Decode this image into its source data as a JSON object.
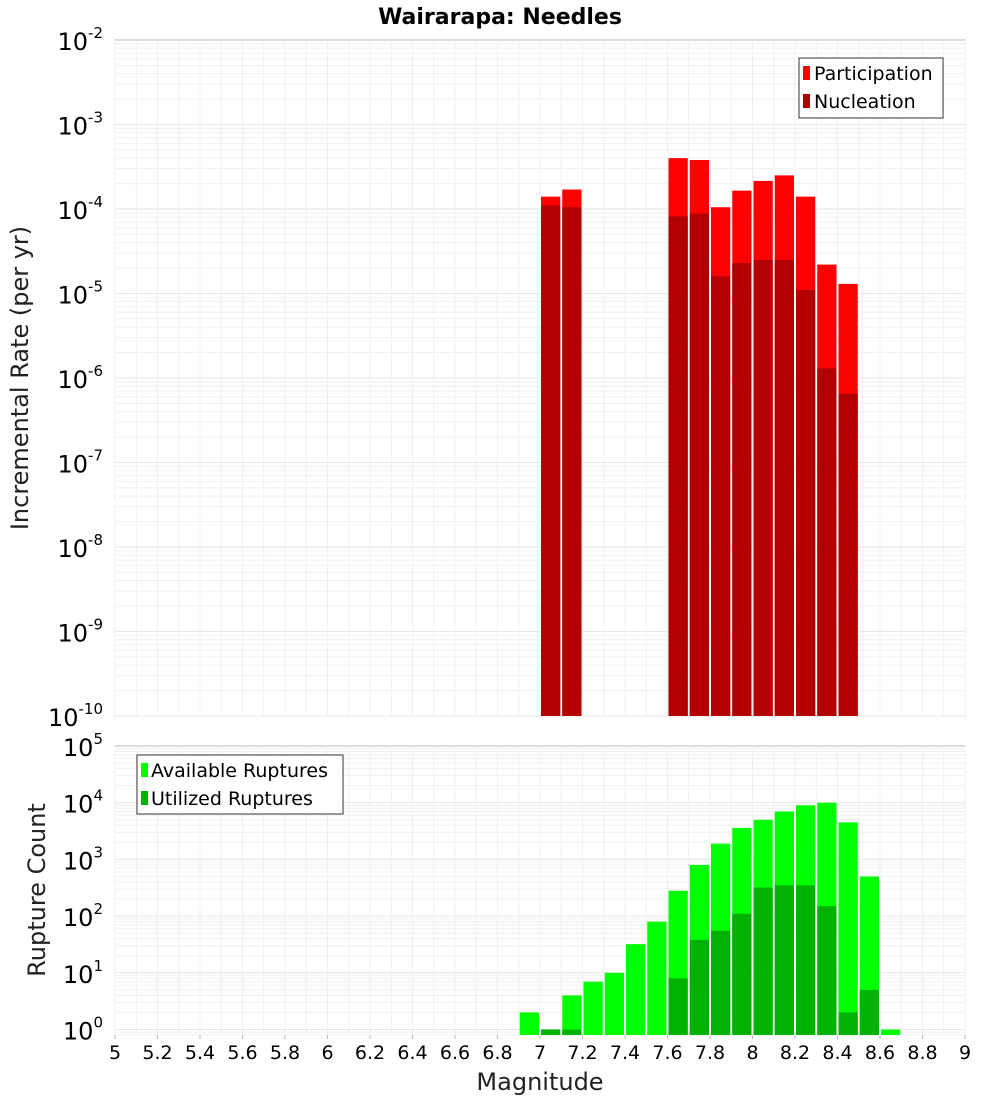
{
  "title": "Wairarapa: Needles",
  "colors": {
    "participation": "#ff0000",
    "nucleation": "#b20000",
    "available": "#00ff00",
    "utilized": "#00b200",
    "frame": "#b8b8b8"
  },
  "chart_data": [
    {
      "type": "bar",
      "ylabel": "Incremental Rate (per yr)",
      "yscale": "log",
      "ylim": [
        1e-10,
        0.01
      ],
      "xlim": [
        5,
        9
      ],
      "bar_width": 0.1,
      "yticks": [
        {
          "base": "10",
          "exp": "-10"
        },
        {
          "base": "10",
          "exp": "-9"
        },
        {
          "base": "10",
          "exp": "-8"
        },
        {
          "base": "10",
          "exp": "-7"
        },
        {
          "base": "10",
          "exp": "-6"
        },
        {
          "base": "10",
          "exp": "-5"
        },
        {
          "base": "10",
          "exp": "-4"
        },
        {
          "base": "10",
          "exp": "-3"
        },
        {
          "base": "10",
          "exp": "-2"
        }
      ],
      "legend": {
        "position": "top-right",
        "items": [
          "Participation",
          "Nucleation"
        ]
      },
      "series": [
        {
          "name": "Participation",
          "x": [
            7.05,
            7.15,
            7.65,
            7.75,
            7.85,
            7.95,
            8.05,
            8.15,
            8.25,
            8.35,
            8.45
          ],
          "values": [
            0.00014,
            0.00017,
            0.0004,
            0.00038,
            0.000105,
            0.000165,
            0.000215,
            0.00025,
            0.00014,
            2.2e-05,
            1.3e-05
          ]
        },
        {
          "name": "Nucleation",
          "x": [
            7.05,
            7.15,
            7.65,
            7.75,
            7.85,
            7.95,
            8.05,
            8.15,
            8.25,
            8.35,
            8.45
          ],
          "values": [
            0.00011,
            0.000105,
            8.2e-05,
            8.8e-05,
            1.6e-05,
            2.3e-05,
            2.5e-05,
            2.5e-05,
            1.1e-05,
            1.3e-06,
            6.5e-07
          ]
        }
      ]
    },
    {
      "type": "bar",
      "ylabel": "Rupture Count",
      "xlabel": "Magnitude",
      "yscale": "log",
      "ylim": [
        0.8,
        100000
      ],
      "xlim": [
        5,
        9
      ],
      "bar_width": 0.1,
      "xticks": [
        "5",
        "5.2",
        "5.4",
        "5.6",
        "5.8",
        "6",
        "6.2",
        "6.4",
        "6.6",
        "6.8",
        "7",
        "7.2",
        "7.4",
        "7.6",
        "7.8",
        "8",
        "8.2",
        "8.4",
        "8.6",
        "8.8",
        "9"
      ],
      "yticks": [
        {
          "base": "10",
          "exp": "0"
        },
        {
          "base": "10",
          "exp": "1"
        },
        {
          "base": "10",
          "exp": "2"
        },
        {
          "base": "10",
          "exp": "3"
        },
        {
          "base": "10",
          "exp": "4"
        },
        {
          "base": "10",
          "exp": "5"
        }
      ],
      "legend": {
        "position": "top-left",
        "items": [
          "Available Ruptures",
          "Utilized Ruptures"
        ]
      },
      "series": [
        {
          "name": "Available Ruptures",
          "x": [
            6.95,
            7.05,
            7.15,
            7.25,
            7.35,
            7.45,
            7.55,
            7.65,
            7.75,
            7.85,
            7.95,
            8.05,
            8.15,
            8.25,
            8.35,
            8.45,
            8.55,
            8.65
          ],
          "values": [
            2,
            1,
            4,
            7,
            10,
            32,
            80,
            280,
            800,
            1900,
            3600,
            5000,
            7000,
            9000,
            10000,
            4500,
            500,
            1
          ]
        },
        {
          "name": "Utilized Ruptures",
          "x": [
            7.05,
            7.15,
            7.65,
            7.75,
            7.85,
            7.95,
            8.05,
            8.15,
            8.25,
            8.35,
            8.45,
            8.55
          ],
          "values": [
            1,
            1,
            8,
            38,
            55,
            110,
            320,
            350,
            350,
            150,
            2,
            5
          ]
        }
      ]
    }
  ]
}
